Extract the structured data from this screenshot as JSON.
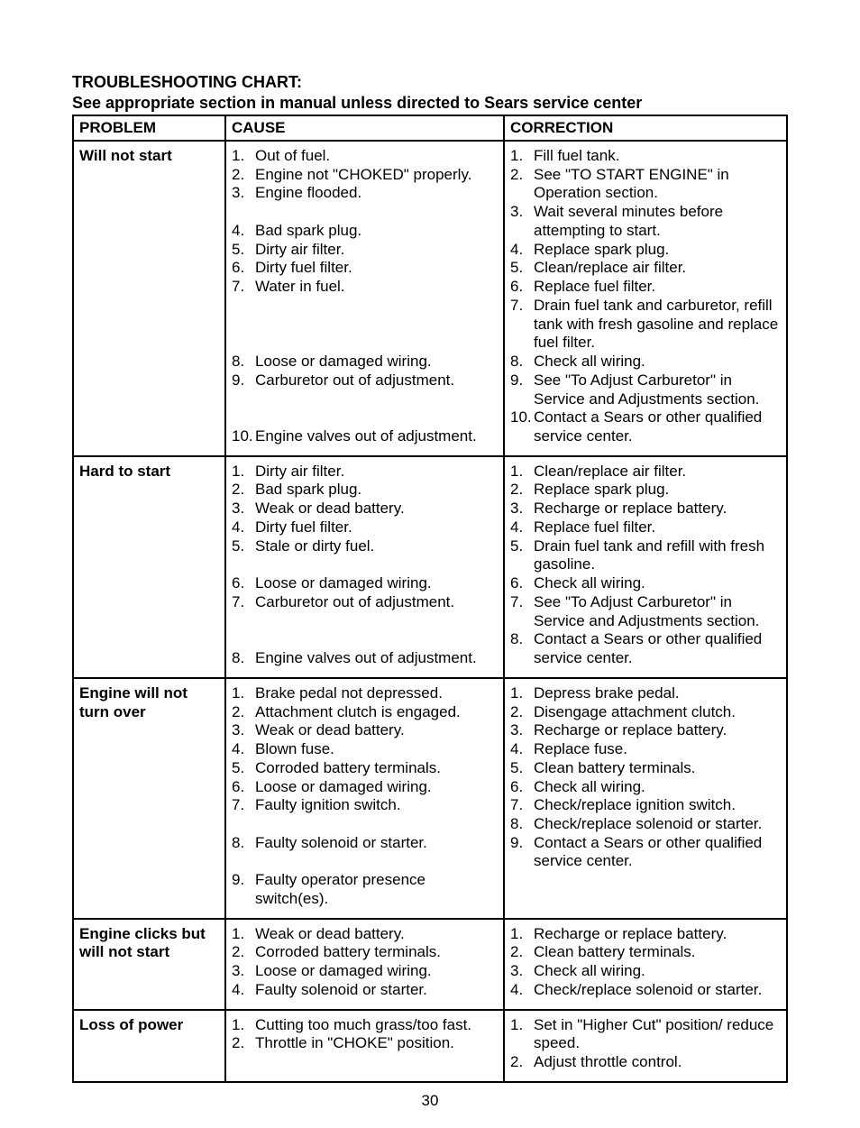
{
  "title_line1": "TROUBLESHOOTING CHART:",
  "title_line2": "See appropriate section in manual unless directed to Sears service center",
  "headers": {
    "problem": "PROBLEM",
    "cause": "CAUSE",
    "correction": "CORRECTION"
  },
  "rows": [
    {
      "problem": "Will not start",
      "cause": [
        {
          "n": "1.",
          "t": "Out of fuel."
        },
        {
          "n": "2.",
          "t": "Engine not \"CHOKED\" properly."
        },
        {
          "n": "3.",
          "t": "Engine flooded."
        },
        {
          "n": "",
          "t": " "
        },
        {
          "n": "4.",
          "t": "Bad spark plug."
        },
        {
          "n": "5.",
          "t": "Dirty air filter."
        },
        {
          "n": "6.",
          "t": "Dirty fuel filter."
        },
        {
          "n": "7.",
          "t": "Water in fuel."
        },
        {
          "n": "",
          "t": " "
        },
        {
          "n": "",
          "t": " "
        },
        {
          "n": "",
          "t": " "
        },
        {
          "n": "8.",
          "t": "Loose or damaged wiring."
        },
        {
          "n": "9.",
          "t": "Carburetor out of adjustment."
        },
        {
          "n": "",
          "t": " "
        },
        {
          "n": "",
          "t": " "
        },
        {
          "n": "10.",
          "t": "Engine valves out of adjustment."
        }
      ],
      "correction": [
        {
          "n": "1.",
          "t": "Fill fuel tank."
        },
        {
          "n": "2.",
          "t": "See \"TO START ENGINE\" in Operation section."
        },
        {
          "n": "3.",
          "t": "Wait several minutes before attempting to start."
        },
        {
          "n": "4.",
          "t": "Replace spark plug."
        },
        {
          "n": "5.",
          "t": "Clean/replace air filter."
        },
        {
          "n": "6.",
          "t": "Replace fuel filter."
        },
        {
          "n": "7.",
          "t": "Drain fuel tank and carburetor, refill tank with fresh gasoline and replace fuel filter."
        },
        {
          "n": "8.",
          "t": "Check all wiring."
        },
        {
          "n": "9.",
          "t": "See \"To Adjust Carburetor\" in Service and Adjustments section."
        },
        {
          "n": "10.",
          "t": "Contact a Sears or other qualified service center."
        }
      ]
    },
    {
      "problem": "Hard to start",
      "cause": [
        {
          "n": "1.",
          "t": "Dirty air filter."
        },
        {
          "n": "2.",
          "t": "Bad spark plug."
        },
        {
          "n": "3.",
          "t": "Weak or dead battery."
        },
        {
          "n": "4.",
          "t": "Dirty fuel filter."
        },
        {
          "n": "5.",
          "t": "Stale or dirty fuel."
        },
        {
          "n": "",
          "t": " "
        },
        {
          "n": "6.",
          "t": "Loose or damaged wiring."
        },
        {
          "n": "7.",
          "t": "Carburetor out of adjustment."
        },
        {
          "n": "",
          "t": " "
        },
        {
          "n": "",
          "t": " "
        },
        {
          "n": "8.",
          "t": "Engine valves out of adjustment."
        }
      ],
      "correction": [
        {
          "n": "1.",
          "t": "Clean/replace air filter."
        },
        {
          "n": "2.",
          "t": "Replace spark plug."
        },
        {
          "n": "3.",
          "t": "Recharge or replace battery."
        },
        {
          "n": "4.",
          "t": "Replace fuel filter."
        },
        {
          "n": "5.",
          "t": "Drain fuel tank and refill with fresh gasoline."
        },
        {
          "n": "6.",
          "t": "Check all wiring."
        },
        {
          "n": "7.",
          "t": "See \"To Adjust Carburetor\" in Service and Adjustments section."
        },
        {
          "n": "8.",
          "t": "Contact a Sears or other qualified service center."
        }
      ]
    },
    {
      "problem": "Engine will not turn over",
      "cause": [
        {
          "n": "1.",
          "t": "Brake pedal not depressed."
        },
        {
          "n": "2.",
          "t": "Attachment clutch is engaged."
        },
        {
          "n": "3.",
          "t": "Weak or dead battery."
        },
        {
          "n": "4.",
          "t": "Blown fuse."
        },
        {
          "n": "5.",
          "t": "Corroded battery terminals."
        },
        {
          "n": "6.",
          "t": "Loose or damaged wiring."
        },
        {
          "n": "7.",
          "t": "Faulty ignition switch."
        },
        {
          "n": "",
          "t": " "
        },
        {
          "n": "8.",
          "t": "Faulty solenoid or starter."
        },
        {
          "n": "",
          "t": " "
        },
        {
          "n": "9.",
          "t": "Faulty operator presence switch(es)."
        }
      ],
      "correction": [
        {
          "n": "1.",
          "t": "Depress brake pedal."
        },
        {
          "n": "2.",
          "t": "Disengage attachment clutch."
        },
        {
          "n": "3.",
          "t": "Recharge or replace battery."
        },
        {
          "n": "4.",
          "t": "Replace fuse."
        },
        {
          "n": "5.",
          "t": "Clean battery terminals."
        },
        {
          "n": "6.",
          "t": "Check all wiring."
        },
        {
          "n": "7.",
          "t": "Check/replace ignition switch."
        },
        {
          "n": "8.",
          "t": "Check/replace solenoid or starter."
        },
        {
          "n": "9.",
          "t": "Contact a Sears or other qualified service center."
        }
      ]
    },
    {
      "problem": "Engine clicks but will not start",
      "cause": [
        {
          "n": "1.",
          "t": "Weak or dead battery."
        },
        {
          "n": "2.",
          "t": "Corroded battery terminals."
        },
        {
          "n": "3.",
          "t": "Loose or damaged wiring."
        },
        {
          "n": "4.",
          "t": "Faulty solenoid or starter."
        }
      ],
      "correction": [
        {
          "n": "1.",
          "t": "Recharge or replace battery."
        },
        {
          "n": "2.",
          "t": "Clean battery terminals."
        },
        {
          "n": "3.",
          "t": "Check all wiring."
        },
        {
          "n": "4.",
          "t": "Check/replace solenoid or starter."
        }
      ]
    },
    {
      "problem": "Loss of power",
      "cause": [
        {
          "n": "1.",
          "t": "Cutting too much grass/too fast."
        },
        {
          "n": "2.",
          "t": "Throttle in \"CHOKE\" position."
        }
      ],
      "correction": [
        {
          "n": "1.",
          "t": "Set in \"Higher Cut\" position/ reduce speed."
        },
        {
          "n": "2.",
          "t": "Adjust throttle control."
        }
      ]
    }
  ],
  "page_number": "30"
}
